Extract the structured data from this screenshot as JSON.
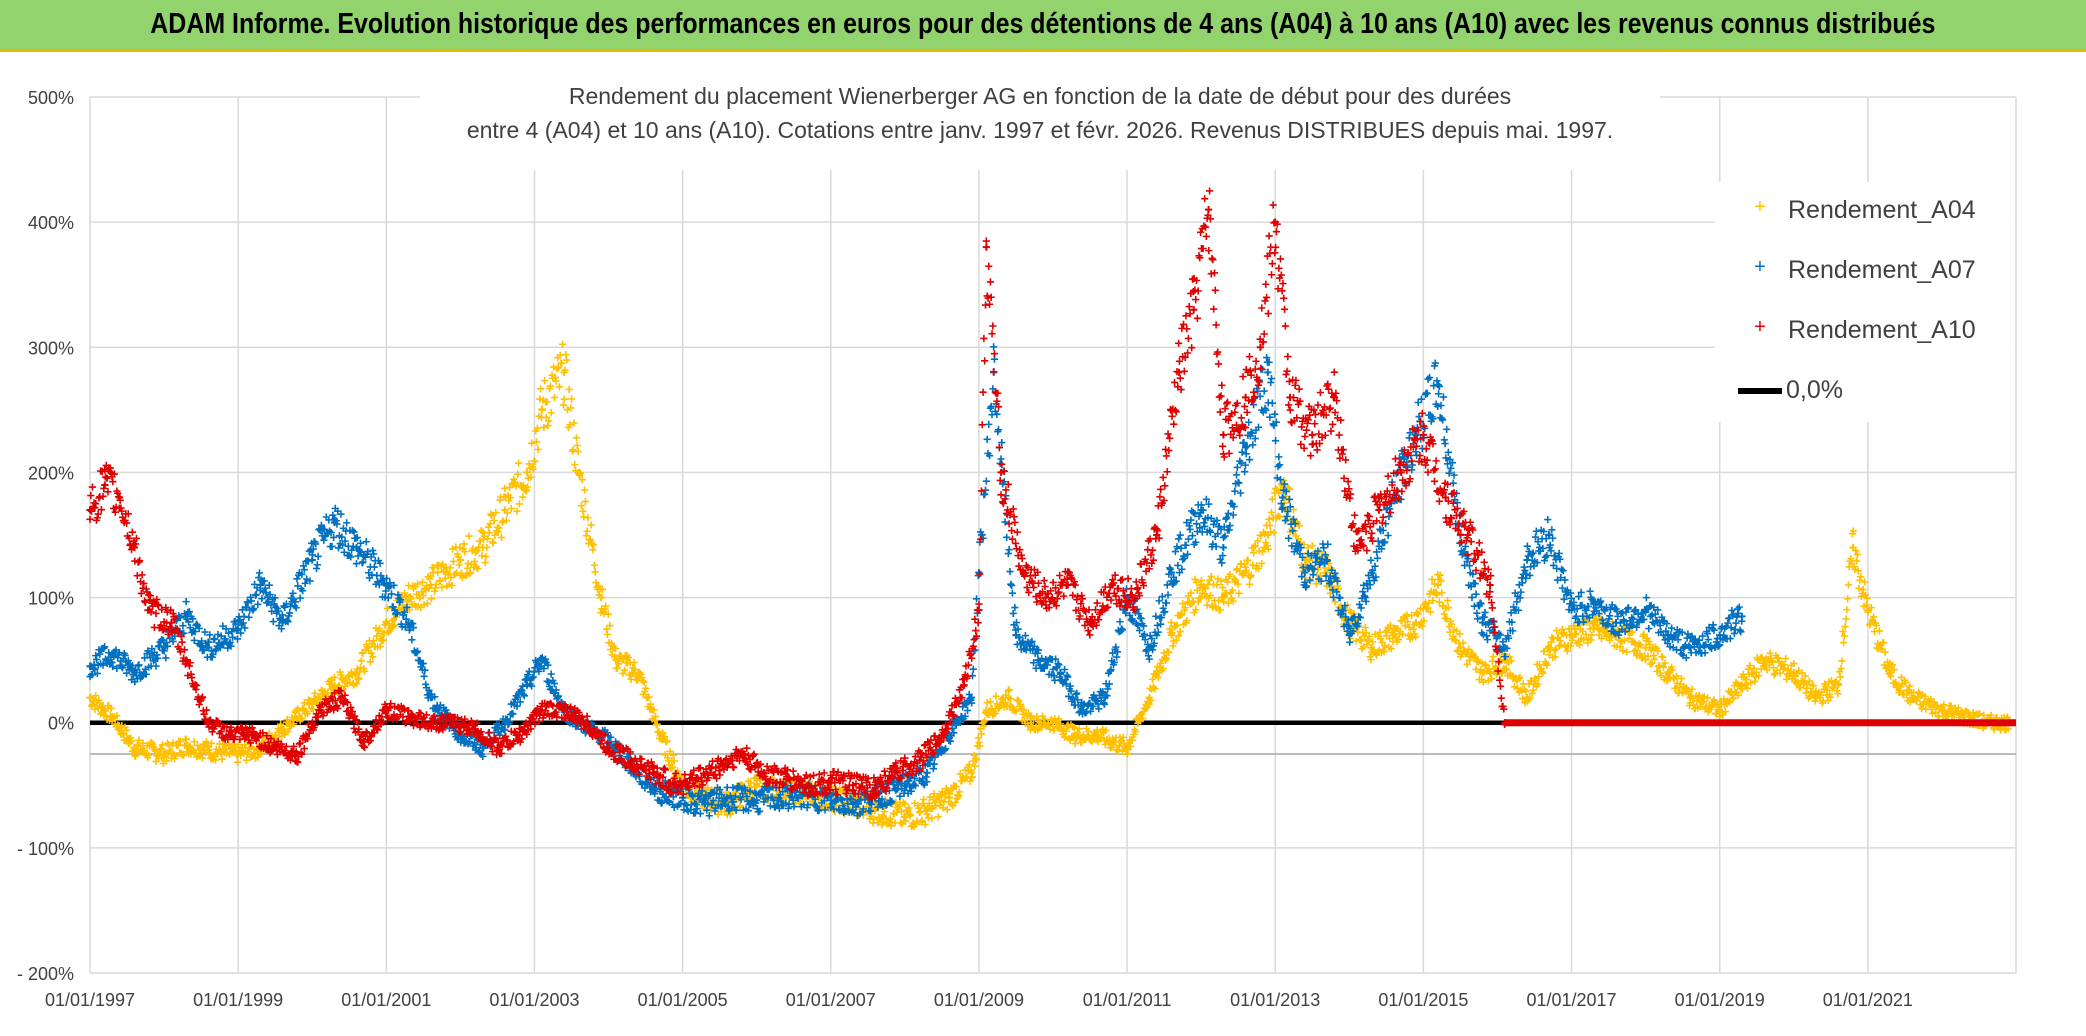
{
  "banner": {
    "title": "ADAM Informe. Evolution historique des performances en euros pour des détentions de 4 ans (A04) à 10 ans (A10) avec les revenus connus distribués"
  },
  "colors": {
    "banner_bg": "#92d36e",
    "a04": "#ffc000",
    "a07": "#0070c0",
    "a10": "#e00000",
    "zero_line": "#000000",
    "grid": "#d9d9d9"
  },
  "chart_data": {
    "type": "scatter",
    "title_line1": "Rendement du placement Wienerberger AG en fonction de la date de début pour des durées",
    "title_line2": "entre 4 (A04) et 10 ans (A10). Cotations entre janv. 1997 et févr. 2026. Revenus DISTRIBUES depuis mai. 1997.",
    "xlabel": "",
    "ylabel": "",
    "x_range": [
      1997.0,
      2023.0
    ],
    "ylim": [
      -200,
      500
    ],
    "y_ticks": [
      500,
      400,
      300,
      200,
      100,
      0,
      -100,
      -200
    ],
    "y_tick_labels": [
      "500%",
      "400%",
      "300%",
      "200%",
      "100%",
      "0%",
      "- 100%",
      "- 200%"
    ],
    "x_ticks": [
      1997,
      1999,
      2001,
      2003,
      2005,
      2007,
      2009,
      2011,
      2013,
      2015,
      2017,
      2019,
      2021
    ],
    "x_tick_labels": [
      "01/01/1997",
      "01/01/1999",
      "01/01/2001",
      "01/01/2003",
      "01/01/2005",
      "01/01/2007",
      "01/01/2009",
      "01/01/2011",
      "01/01/2013",
      "01/01/2015",
      "01/01/2017",
      "01/01/2019",
      "01/01/2021"
    ],
    "legend_position": "top-right",
    "series": [
      {
        "name": "Rendement_A04",
        "color": "#ffc000",
        "x": [
          1997.0,
          1997.3,
          1997.6,
          1998.0,
          1998.3,
          1998.6,
          1999.0,
          1999.3,
          1999.6,
          2000.0,
          2000.3,
          2000.6,
          2001.0,
          2001.3,
          2001.6,
          2002.0,
          2002.3,
          2002.6,
          2002.9,
          2003.1,
          2003.4,
          2003.6,
          2003.9,
          2004.1,
          2004.4,
          2004.7,
          2005.0,
          2005.3,
          2005.6,
          2006.0,
          2006.3,
          2006.6,
          2007.0,
          2007.3,
          2007.6,
          2008.0,
          2008.3,
          2008.6,
          2008.9,
          2009.1,
          2009.4,
          2009.7,
          2010.0,
          2010.3,
          2010.6,
          2011.0,
          2011.3,
          2011.6,
          2012.0,
          2012.3,
          2012.6,
          2012.9,
          2013.1,
          2013.4,
          2013.7,
          2014.0,
          2014.3,
          2014.6,
          2014.9,
          2015.2,
          2015.5,
          2015.8,
          2016.1,
          2016.4,
          2016.7,
          2017.0,
          2017.3,
          2017.6,
          2018.0,
          2018.3,
          2018.6,
          2019.0,
          2019.3,
          2019.6,
          2020.0,
          2020.3,
          2020.6,
          2020.8,
          2021.0,
          2021.3,
          2021.6,
          2022.0,
          2022.3,
          2022.6,
          2022.9
        ],
        "values": [
          20,
          5,
          -20,
          -25,
          -18,
          -22,
          -25,
          -20,
          -5,
          15,
          30,
          40,
          80,
          100,
          110,
          130,
          140,
          170,
          200,
          250,
          280,
          200,
          100,
          50,
          40,
          -10,
          -50,
          -60,
          -65,
          -50,
          -55,
          -55,
          -60,
          -65,
          -70,
          -75,
          -70,
          -60,
          -40,
          10,
          20,
          0,
          0,
          -10,
          -10,
          -20,
          20,
          70,
          110,
          100,
          120,
          150,
          190,
          130,
          120,
          80,
          60,
          70,
          80,
          110,
          60,
          40,
          50,
          20,
          60,
          70,
          75,
          70,
          60,
          40,
          20,
          10,
          30,
          50,
          40,
          20,
          30,
          140,
          90,
          40,
          20,
          10,
          5,
          0,
          0
        ]
      },
      {
        "name": "Rendement_A07",
        "color": "#0070c0",
        "x": [
          1997.0,
          1997.3,
          1997.6,
          1998.0,
          1998.3,
          1998.6,
          1999.0,
          1999.3,
          1999.6,
          2000.0,
          2000.3,
          2000.6,
          2001.0,
          2001.3,
          2001.6,
          2002.0,
          2002.3,
          2002.6,
          2002.9,
          2003.1,
          2003.4,
          2003.6,
          2003.9,
          2004.1,
          2004.4,
          2004.7,
          2005.0,
          2005.3,
          2005.6,
          2006.0,
          2006.3,
          2006.6,
          2007.0,
          2007.3,
          2007.6,
          2008.0,
          2008.3,
          2008.6,
          2008.9,
          2009.0,
          2009.2,
          2009.5,
          2009.8,
          2010.1,
          2010.4,
          2010.7,
          2011.0,
          2011.3,
          2011.6,
          2012.0,
          2012.3,
          2012.6,
          2012.9,
          2013.1,
          2013.4,
          2013.7,
          2014.0,
          2014.3,
          2014.6,
          2014.9,
          2015.2,
          2015.5,
          2015.8,
          2016.1,
          2016.4,
          2016.7,
          2017.0,
          2017.3,
          2017.6,
          2018.0,
          2018.3,
          2018.6,
          2019.0,
          2019.3
        ],
        "values": [
          45,
          55,
          40,
          60,
          85,
          60,
          75,
          110,
          80,
          130,
          160,
          140,
          110,
          80,
          20,
          -10,
          -20,
          0,
          30,
          50,
          10,
          0,
          -10,
          -20,
          -40,
          -55,
          -60,
          -65,
          -60,
          -62,
          -60,
          -58,
          -62,
          -65,
          -60,
          -50,
          -40,
          -10,
          20,
          120,
          280,
          70,
          50,
          40,
          10,
          20,
          100,
          60,
          120,
          170,
          140,
          220,
          280,
          180,
          120,
          130,
          70,
          120,
          180,
          230,
          270,
          150,
          80,
          60,
          130,
          150,
          90,
          95,
          80,
          90,
          70,
          60,
          70,
          85
        ]
      },
      {
        "name": "Rendement_A10",
        "color": "#e00000",
        "x": [
          1997.0,
          1997.2,
          1997.4,
          1997.6,
          1997.8,
          1998.1,
          1998.3,
          1998.6,
          1998.9,
          1999.2,
          1999.5,
          1999.8,
          2000.1,
          2000.4,
          2000.7,
          2001.0,
          2001.3,
          2001.6,
          2001.9,
          2002.2,
          2002.5,
          2002.8,
          2003.1,
          2003.4,
          2003.7,
          2004.0,
          2004.3,
          2004.6,
          2004.9,
          2005.2,
          2005.5,
          2005.8,
          2006.1,
          2006.4,
          2006.7,
          2007.0,
          2007.3,
          2007.6,
          2007.9,
          2008.2,
          2008.5,
          2008.8,
          2009.0,
          2009.1,
          2009.3,
          2009.6,
          2009.9,
          2010.2,
          2010.5,
          2010.8,
          2011.1,
          2011.4,
          2011.7,
          2011.9,
          2012.1,
          2012.3,
          2012.6,
          2012.8,
          2013.0,
          2013.2,
          2013.5,
          2013.8,
          2014.1,
          2014.4,
          2014.7,
          2015.0,
          2015.3,
          2015.6,
          2015.9,
          2016.1
        ],
        "values": [
          170,
          190,
          180,
          140,
          90,
          80,
          50,
          0,
          -10,
          -10,
          -20,
          -25,
          10,
          20,
          -15,
          10,
          5,
          0,
          0,
          -5,
          -20,
          -10,
          10,
          10,
          0,
          -20,
          -30,
          -40,
          -50,
          -45,
          -35,
          -25,
          -40,
          -45,
          -50,
          -48,
          -50,
          -52,
          -40,
          -30,
          -10,
          30,
          90,
          380,
          200,
          120,
          100,
          110,
          80,
          110,
          100,
          150,
          280,
          330,
          410,
          230,
          260,
          300,
          400,
          260,
          230,
          260,
          140,
          170,
          200,
          230,
          180,
          150,
          110,
          0
        ]
      }
    ],
    "zero_line": {
      "name": "0,0%",
      "from": 2016.1,
      "to": 2023.0,
      "a10_flat_value": 0
    }
  }
}
